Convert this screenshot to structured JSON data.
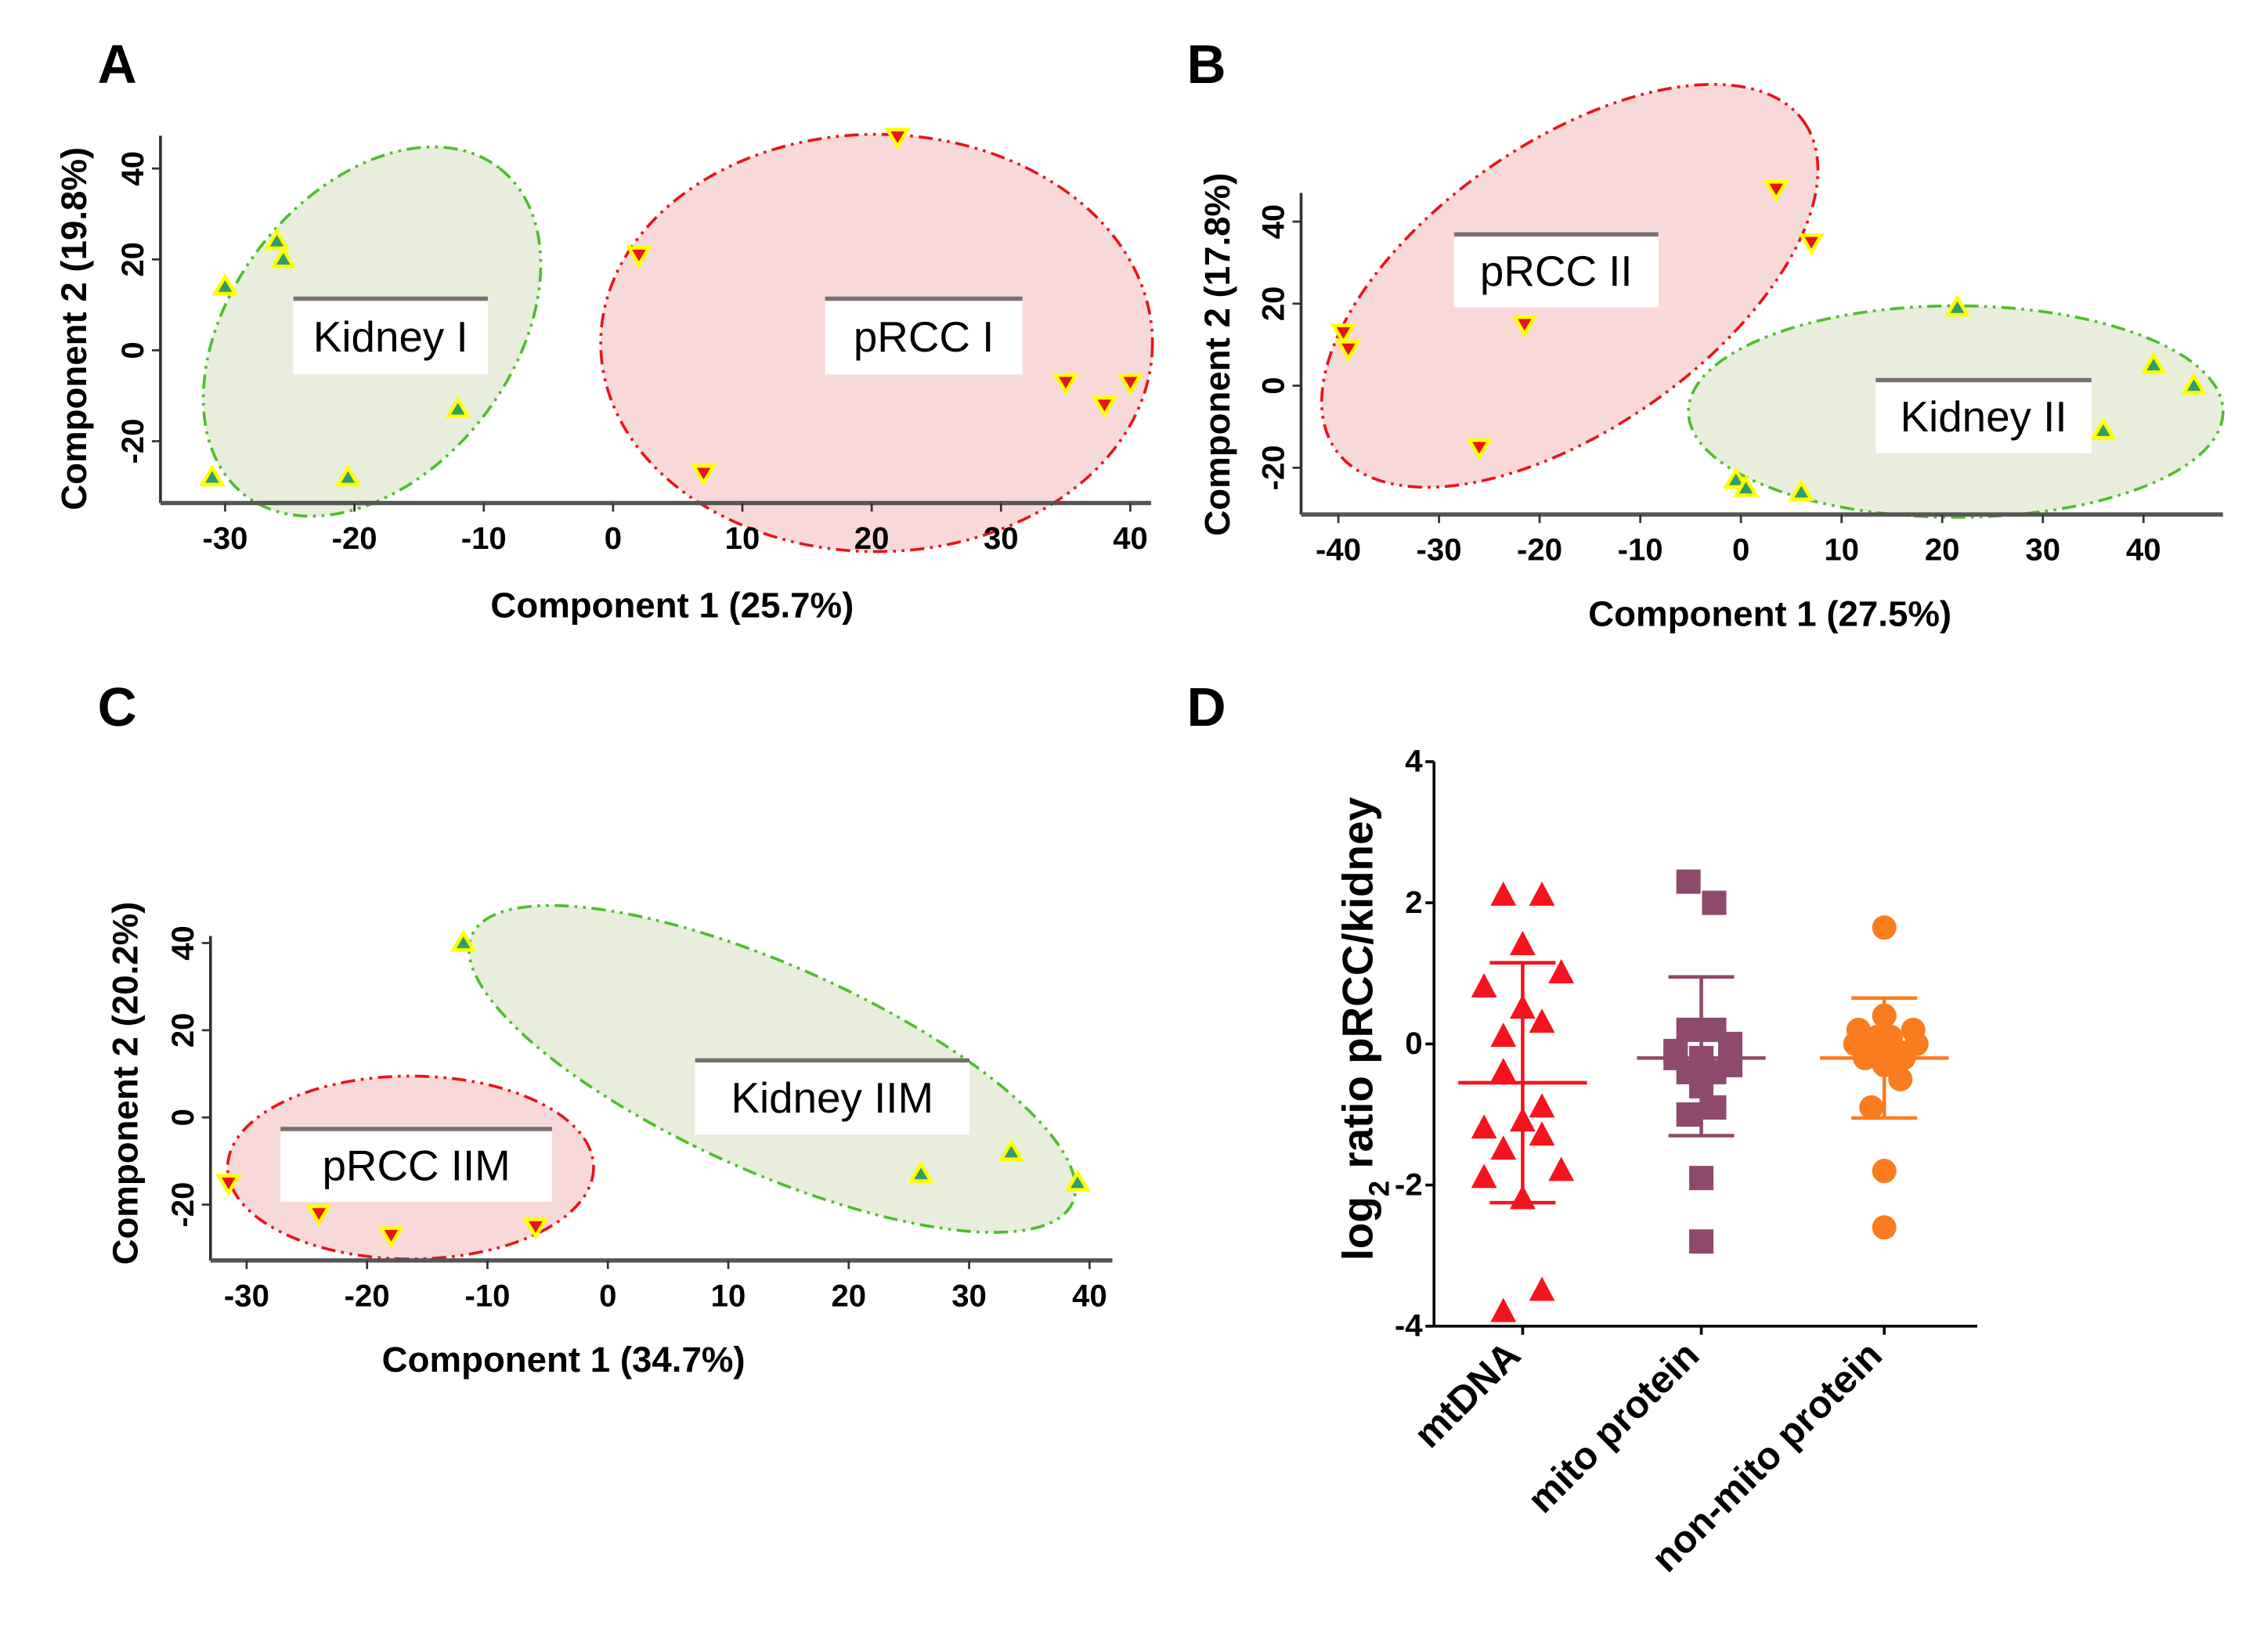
{
  "chart_data": [
    {
      "panel": "A",
      "type": "scatter",
      "xlabel": "Component  1 (25.7%)",
      "ylabel": "Component  2 (19.8%)",
      "xlim": [
        -35,
        41.6
      ],
      "ylim": [
        -33.6,
        47.2
      ],
      "xticks": [
        -30,
        -20,
        -10,
        0,
        10,
        20,
        30,
        40
      ],
      "yticks": [
        -20,
        0,
        20,
        40
      ],
      "grid": false,
      "series": [
        {
          "name": "Kidney I",
          "marker": "triangle-up",
          "color": "#2f9e6a",
          "edge": "#ffff00",
          "points": [
            [
              -26,
              24
            ],
            [
              -25.5,
              20
            ],
            [
              -30,
              14
            ],
            [
              -12,
              -13
            ],
            [
              -31,
              -28
            ],
            [
              -20.5,
              -28
            ]
          ]
        },
        {
          "name": "pRCC I",
          "marker": "triangle-down",
          "color": "#e8141b",
          "edge": "#ffff00",
          "points": [
            [
              22,
              47
            ],
            [
              2,
              21
            ],
            [
              35,
              -7
            ],
            [
              38,
              -12
            ],
            [
              40,
              -7
            ],
            [
              7,
              -27
            ]
          ]
        }
      ]
    },
    {
      "panel": "B",
      "type": "scatter",
      "xlabel": "Component 1 (27.5%)",
      "ylabel": "Component 2 (17.8%)",
      "xlim": [
        -43.7,
        47.9
      ],
      "ylim": [
        -31.4,
        47
      ],
      "xticks": [
        -40,
        -30,
        -20,
        -10,
        0,
        10,
        20,
        30,
        40
      ],
      "yticks": [
        -20,
        0,
        20,
        40
      ],
      "grid": false,
      "series": [
        {
          "name": "pRCC II",
          "marker": "triangle-down",
          "color": "#e8141b",
          "edge": "#ffff00",
          "points": [
            [
              -39.5,
              13
            ],
            [
              -39,
              9
            ],
            [
              -21.5,
              15
            ],
            [
              -26,
              -15
            ],
            [
              3.5,
              48
            ],
            [
              7,
              35
            ]
          ]
        },
        {
          "name": "Kidney II",
          "marker": "triangle-up",
          "color": "#2f9e6a",
          "edge": "#ffff00",
          "points": [
            [
              21.5,
              19
            ],
            [
              41,
              5
            ],
            [
              45,
              0
            ],
            [
              36,
              -11
            ],
            [
              -0.5,
              -23
            ],
            [
              0.5,
              -25
            ],
            [
              6,
              -26
            ]
          ]
        }
      ]
    },
    {
      "panel": "C",
      "type": "scatter",
      "xlabel": "Component 1 (34.7%)",
      "ylabel": "Component 2 (20.2%)",
      "xlim": [
        -33,
        41.9
      ],
      "ylim": [
        -32.8,
        41.6
      ],
      "xticks": [
        -30,
        -20,
        -10,
        0,
        10,
        20,
        30,
        40
      ],
      "yticks": [
        -20,
        0,
        20,
        40
      ],
      "grid": false,
      "series": [
        {
          "name": "Kidney IIM",
          "marker": "triangle-up",
          "color": "#2f9e6a",
          "edge": "#ffff00",
          "points": [
            [
              -12,
              40
            ],
            [
              26,
              -13
            ],
            [
              33.5,
              -8
            ],
            [
              39,
              -15
            ]
          ]
        },
        {
          "name": "pRCC IIM",
          "marker": "triangle-down",
          "color": "#e8141b",
          "edge": "#ffff00",
          "points": [
            [
              -31.5,
              -15
            ],
            [
              -24,
              -22
            ],
            [
              -18,
              -27
            ],
            [
              -6,
              -25
            ]
          ]
        }
      ]
    },
    {
      "panel": "D",
      "type": "scatter",
      "ylabel_main": "log",
      "ylabel_sub": "2",
      "ylabel_rest": " ratio pRCC/kidney",
      "ylim": [
        -4,
        4
      ],
      "yticks": [
        -4,
        -2,
        0,
        2,
        4
      ],
      "categories": [
        "mtDNA",
        "mito protein",
        "non-mito protein"
      ],
      "grid": false,
      "series": [
        {
          "name": "mtDNA",
          "marker": "triangle-up",
          "color": "#f5141e",
          "jitter": [
            -0.3,
            0.3,
            0,
            0.6,
            -0.6,
            0,
            -0.3,
            0.3,
            -0.3,
            0.3,
            -0.6,
            0,
            0.3,
            -0.3,
            0.6,
            -0.6,
            0,
            0.3,
            -0.3
          ],
          "values": [
            2.1,
            2.1,
            1.4,
            1.0,
            0.8,
            0.5,
            0.1,
            0.3,
            -0.4,
            -0.9,
            -1.2,
            -1.1,
            -1.3,
            -1.5,
            -1.8,
            -1.9,
            -2.2,
            -3.5,
            -3.8
          ],
          "mean": -0.55,
          "sd_high": 1.15,
          "sd_low": -2.25
        },
        {
          "name": "mito protein",
          "marker": "square",
          "color": "#8e4a6c",
          "jitter": [
            -0.2,
            0.2,
            -0.2,
            0.2,
            0.45,
            -0.4,
            0,
            -0.2,
            0.2,
            0,
            0.2,
            -0.2,
            0,
            0,
            -0.4,
            0.45
          ],
          "values": [
            2.3,
            2.0,
            0.2,
            0.2,
            0.0,
            -0.1,
            -0.2,
            -0.4,
            -0.4,
            -0.6,
            -0.9,
            -1.0,
            -1.9,
            -2.8,
            -0.2,
            -0.3
          ],
          "mean": -0.2,
          "sd_high": 0.95,
          "sd_low": -1.3
        },
        {
          "name": "non-mito protein",
          "marker": "circle",
          "color": "#f97c1f",
          "jitter": [
            0,
            0,
            -0.4,
            0.45,
            -0.45,
            0.5,
            -0.2,
            0.2,
            -0.3,
            0.3,
            0,
            0.25,
            -0.2,
            0,
            0,
            -0.1,
            0.1
          ],
          "values": [
            1.65,
            0.4,
            0.2,
            0.2,
            0.0,
            0.0,
            -0.1,
            -0.1,
            -0.2,
            -0.2,
            -0.3,
            -0.5,
            -0.9,
            -1.8,
            -2.6,
            0.1,
            0.1
          ],
          "mean": -0.2,
          "sd_high": 0.65,
          "sd_low": -1.05
        }
      ]
    }
  ]
}
